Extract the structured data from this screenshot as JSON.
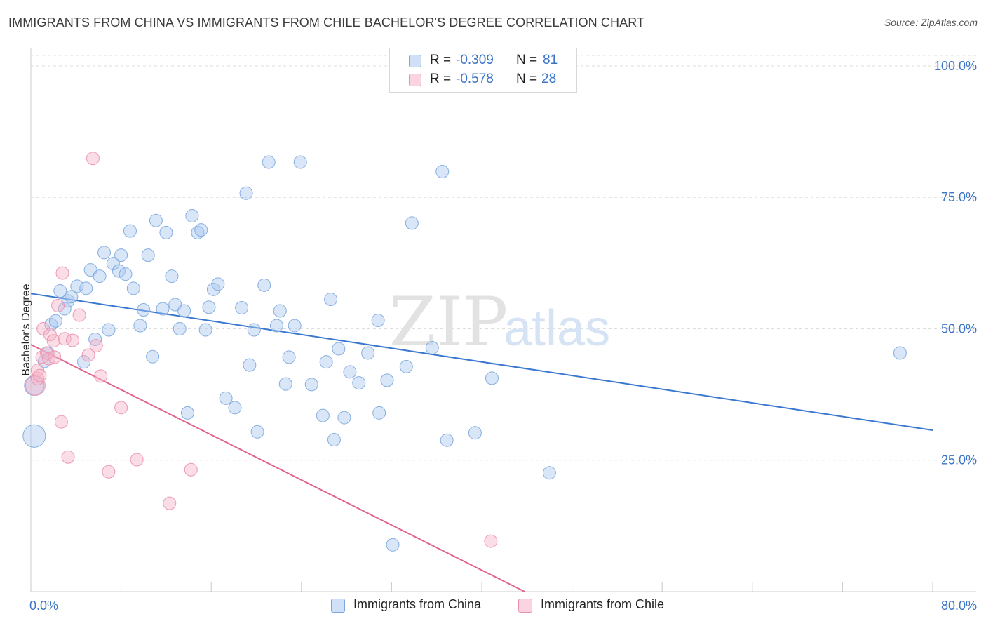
{
  "header": {
    "title": "IMMIGRANTS FROM CHINA VS IMMIGRANTS FROM CHILE BACHELOR'S DEGREE CORRELATION CHART",
    "source": "Source: ZipAtlas.com"
  },
  "watermark": {
    "zip": "ZIP",
    "atlas": "atlas"
  },
  "stats": [
    {
      "r_label": "R =",
      "r_value": "-0.309",
      "n_label": "N =",
      "n_value": "81",
      "color": "#a9c8f0"
    },
    {
      "r_label": "R =",
      "r_value": "-0.578",
      "n_label": "N =",
      "n_value": "28",
      "color": "#f5b4c8"
    }
  ],
  "legend": [
    {
      "label": "Immigrants from China",
      "color": "#a9c8f0"
    },
    {
      "label": "Immigrants from Chile",
      "color": "#f5b4c8"
    }
  ],
  "chart_data": {
    "type": "scatter",
    "title": "IMMIGRANTS FROM CHINA VS IMMIGRANTS FROM CHILE BACHELOR'S DEGREE CORRELATION CHART",
    "xlabel": "",
    "ylabel": "Bachelor's Degree",
    "xlim": [
      0,
      80
    ],
    "ylim": [
      0,
      102
    ],
    "x_tick_labels": [
      "0.0%",
      "80.0%"
    ],
    "y_ticks": [
      {
        "value": 25,
        "label": "25.0%"
      },
      {
        "value": 50,
        "label": "50.0%"
      },
      {
        "value": 75,
        "label": "75.0%"
      },
      {
        "value": 100,
        "label": "100.0%"
      }
    ],
    "grid": true,
    "series": [
      {
        "name": "Immigrants from China",
        "color": "#a9c8f0",
        "stroke": "#7aa6de",
        "trend": {
          "x": [
            0,
            80
          ],
          "y": [
            56.7,
            30.7
          ],
          "color": "#3a78d0"
        },
        "points": [
          [
            0.3,
            39.2,
            14
          ],
          [
            0.3,
            29.6,
            16
          ],
          [
            1.2,
            43.8,
            9
          ],
          [
            1.5,
            45.4,
            9
          ],
          [
            1.8,
            50.8,
            9
          ],
          [
            2.2,
            51.5,
            9
          ],
          [
            2.6,
            57.2,
            9
          ],
          [
            3.0,
            53.8,
            9
          ],
          [
            3.3,
            55.3,
            9
          ],
          [
            3.6,
            56.1,
            9
          ],
          [
            4.1,
            58.1,
            9
          ],
          [
            4.7,
            43.7,
            9
          ],
          [
            4.9,
            57.7,
            9
          ],
          [
            5.3,
            61.2,
            9
          ],
          [
            5.7,
            48.0,
            9
          ],
          [
            6.1,
            60.0,
            9
          ],
          [
            6.5,
            64.5,
            9
          ],
          [
            6.9,
            49.8,
            9
          ],
          [
            7.3,
            62.4,
            9
          ],
          [
            7.8,
            61.0,
            9
          ],
          [
            8.0,
            64.0,
            9
          ],
          [
            8.4,
            60.4,
            9
          ],
          [
            8.8,
            68.6,
            9
          ],
          [
            9.1,
            57.7,
            9
          ],
          [
            9.7,
            50.6,
            9
          ],
          [
            10.0,
            53.6,
            9
          ],
          [
            10.4,
            64.0,
            9
          ],
          [
            10.8,
            44.7,
            9
          ],
          [
            11.1,
            70.6,
            9
          ],
          [
            11.7,
            53.8,
            9
          ],
          [
            12.0,
            68.3,
            9
          ],
          [
            12.5,
            60.0,
            9
          ],
          [
            12.8,
            54.6,
            9
          ],
          [
            13.2,
            50.0,
            9
          ],
          [
            13.6,
            53.4,
            9
          ],
          [
            13.9,
            34.0,
            9
          ],
          [
            14.3,
            71.5,
            9
          ],
          [
            14.8,
            68.3,
            9
          ],
          [
            15.1,
            68.8,
            9
          ],
          [
            15.5,
            49.8,
            9
          ],
          [
            15.8,
            54.1,
            9
          ],
          [
            16.2,
            57.5,
            9
          ],
          [
            16.6,
            58.5,
            9
          ],
          [
            17.3,
            36.8,
            9
          ],
          [
            18.1,
            35.0,
            9
          ],
          [
            18.7,
            54.0,
            9
          ],
          [
            19.1,
            75.8,
            9
          ],
          [
            19.4,
            43.1,
            9
          ],
          [
            19.8,
            49.8,
            9
          ],
          [
            20.1,
            30.4,
            9
          ],
          [
            20.7,
            58.3,
            9
          ],
          [
            21.1,
            81.7,
            9
          ],
          [
            21.8,
            50.6,
            9
          ],
          [
            22.1,
            53.4,
            9
          ],
          [
            22.6,
            39.5,
            9
          ],
          [
            22.9,
            44.6,
            9
          ],
          [
            23.4,
            50.6,
            9
          ],
          [
            23.9,
            81.7,
            9
          ],
          [
            24.9,
            39.4,
            9
          ],
          [
            25.9,
            33.5,
            9
          ],
          [
            26.2,
            43.7,
            9
          ],
          [
            26.6,
            55.6,
            9
          ],
          [
            26.9,
            28.9,
            9
          ],
          [
            27.3,
            46.2,
            9
          ],
          [
            27.8,
            33.1,
            9
          ],
          [
            28.3,
            41.8,
            9
          ],
          [
            29.1,
            39.7,
            9
          ],
          [
            29.9,
            45.4,
            9
          ],
          [
            30.8,
            51.6,
            9
          ],
          [
            30.9,
            34.0,
            9
          ],
          [
            31.6,
            40.2,
            9
          ],
          [
            32.1,
            8.9,
            9
          ],
          [
            33.3,
            42.8,
            9
          ],
          [
            33.8,
            70.1,
            9
          ],
          [
            35.6,
            46.4,
            9
          ],
          [
            36.5,
            79.9,
            9
          ],
          [
            36.9,
            28.8,
            9
          ],
          [
            39.4,
            30.2,
            9
          ],
          [
            40.9,
            40.6,
            9
          ],
          [
            46.0,
            22.6,
            9
          ],
          [
            77.1,
            45.4,
            9
          ]
        ]
      },
      {
        "name": "Immigrants from Chile",
        "color": "#f5b4c8",
        "stroke": "#eb8fab",
        "trend": {
          "x": [
            0,
            43.8
          ],
          "y": [
            47.0,
            0
          ],
          "color": "#e0648e"
        },
        "points": [
          [
            0.4,
            39.2,
            14
          ],
          [
            0.6,
            42.1,
            9
          ],
          [
            0.6,
            40.5,
            9
          ],
          [
            0.8,
            41.1,
            9
          ],
          [
            1.0,
            44.6,
            9
          ],
          [
            1.1,
            50.0,
            9
          ],
          [
            1.4,
            45.4,
            9
          ],
          [
            1.6,
            44.3,
            9
          ],
          [
            1.7,
            48.9,
            9
          ],
          [
            2.0,
            47.7,
            9
          ],
          [
            2.1,
            44.6,
            9
          ],
          [
            2.4,
            54.4,
            9
          ],
          [
            2.7,
            32.3,
            9
          ],
          [
            2.8,
            60.6,
            9
          ],
          [
            3.0,
            48.1,
            9
          ],
          [
            3.3,
            25.6,
            9
          ],
          [
            3.7,
            47.8,
            9
          ],
          [
            4.3,
            52.6,
            9
          ],
          [
            5.1,
            45.0,
            9
          ],
          [
            5.5,
            82.4,
            9
          ],
          [
            5.8,
            46.8,
            9
          ],
          [
            6.2,
            41.0,
            9
          ],
          [
            6.9,
            22.8,
            9
          ],
          [
            8.0,
            35.0,
            9
          ],
          [
            9.4,
            25.1,
            9
          ],
          [
            12.3,
            16.8,
            9
          ],
          [
            14.2,
            23.2,
            9
          ],
          [
            40.8,
            9.6,
            9
          ]
        ]
      }
    ]
  }
}
